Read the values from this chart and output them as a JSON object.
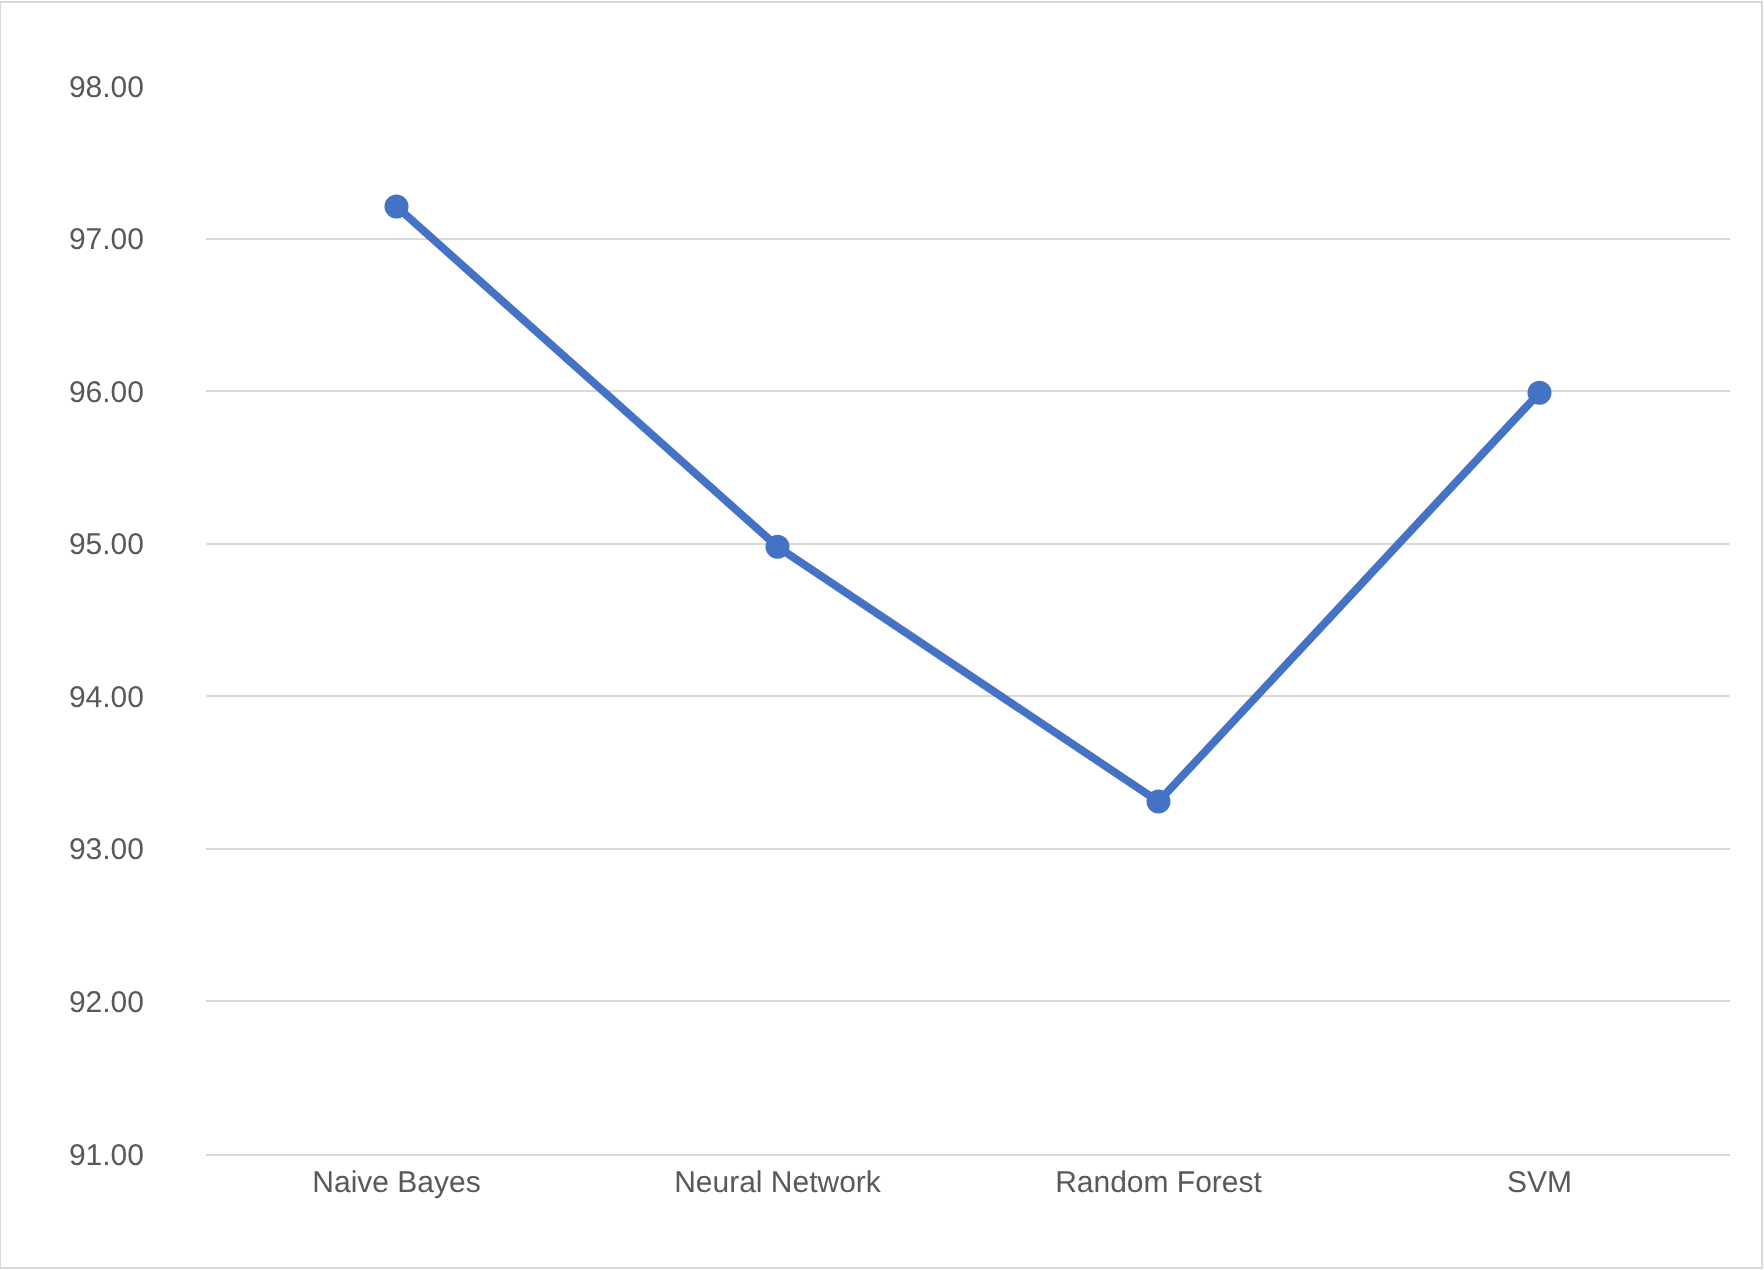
{
  "chart_data": {
    "type": "line",
    "categories": [
      "Naive Bayes",
      "Neural Network",
      "Random Forest",
      "SVM"
    ],
    "series": [
      {
        "color": "#4472c4",
        "values": [
          97.21,
          94.98,
          93.31,
          95.99
        ]
      }
    ],
    "ylim": [
      91,
      98
    ],
    "yticks": [
      {
        "value": 91,
        "label": "91.00"
      },
      {
        "value": 92,
        "label": "92.00"
      },
      {
        "value": 93,
        "label": "93.00"
      },
      {
        "value": 94,
        "label": "94.00"
      },
      {
        "value": 95,
        "label": "95.00"
      },
      {
        "value": 96,
        "label": "96.00"
      },
      {
        "value": 97,
        "label": "97.00"
      },
      {
        "value": 98,
        "label": "98.00"
      }
    ],
    "grid": "y",
    "marker": "circle",
    "line_style": "solid",
    "legend": false
  }
}
